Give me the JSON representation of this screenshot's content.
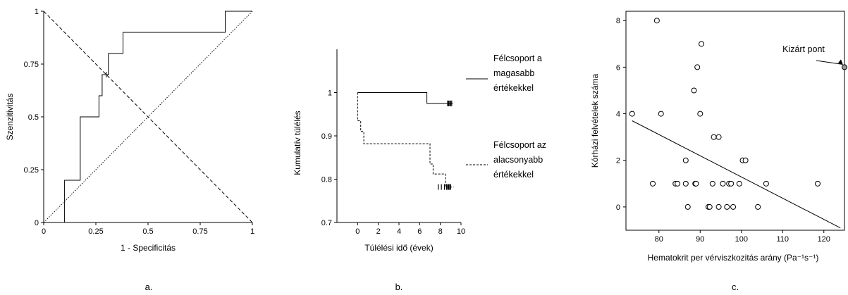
{
  "chart_data": [
    {
      "type": "line",
      "panel_label": "a.",
      "xlabel": "1 - Specificitás",
      "ylabel": "Szenzitivitás",
      "xlim": [
        0,
        1
      ],
      "ylim": [
        0,
        1
      ],
      "x_ticks": [
        "0",
        "0.25",
        "0.5",
        "0.75",
        "1"
      ],
      "y_ticks": [
        "0",
        "0.25",
        "0.5",
        "0.75",
        "1"
      ],
      "grid": false,
      "series": [
        {
          "style": "solid",
          "step": true,
          "x": [
            0.1,
            0.1,
            0.175,
            0.175,
            0.265,
            0.265,
            0.28,
            0.28,
            0.31,
            0.31,
            0.38,
            0.38,
            0.87,
            0.87,
            1.0
          ],
          "y": [
            0.0,
            0.2,
            0.2,
            0.5,
            0.5,
            0.6,
            0.6,
            0.7,
            0.7,
            0.8,
            0.8,
            0.9,
            0.9,
            1.0,
            1.0
          ]
        },
        {
          "style": "dashed",
          "x": [
            0,
            1
          ],
          "y": [
            1,
            0
          ]
        },
        {
          "style": "dotted",
          "x": [
            0,
            1
          ],
          "y": [
            0,
            1
          ]
        }
      ],
      "marker": {
        "x": 0.3,
        "y": 0.7,
        "symbol": "+"
      }
    },
    {
      "type": "line",
      "panel_label": "b.",
      "xlabel": "Túlélési idő (évek)",
      "ylabel": "Kumulatív túlélés",
      "xlim": [
        -2,
        10
      ],
      "ylim": [
        0.7,
        1.1
      ],
      "x_ticks": [
        "0",
        "2",
        "4",
        "6",
        "8",
        "10"
      ],
      "y_ticks": [
        "0.7",
        "0.8",
        "0.9",
        "1"
      ],
      "grid": false,
      "series": [
        {
          "name": "Félcsoport a magasabb értékekkel",
          "legend_lines": [
            "Félcsoport a",
            "magasabb",
            "értékekkel"
          ],
          "style": "solid",
          "step": true,
          "x": [
            0,
            6.7,
            6.7,
            9.2
          ],
          "y": [
            1.0,
            1.0,
            0.975,
            0.975
          ],
          "censored_x": [
            8.7,
            8.8,
            8.9,
            9.0,
            9.1
          ]
        },
        {
          "name": "Félcsoport az alacsonyabb értékekkel",
          "legend_lines": [
            "Félcsoport az",
            "alacsonyabb",
            "értékekkel"
          ],
          "style": "dashed",
          "step": true,
          "x": [
            0,
            0,
            0.3,
            0.3,
            0.6,
            0.6,
            7.0,
            7.0,
            7.3,
            7.3,
            8.5,
            8.5,
            9.3
          ],
          "y": [
            1.0,
            0.935,
            0.935,
            0.91,
            0.91,
            0.882,
            0.882,
            0.835,
            0.835,
            0.812,
            0.812,
            0.782,
            0.782
          ],
          "censored_x": [
            7.8,
            8.1,
            8.4,
            8.6,
            8.7,
            8.8,
            8.9,
            9.0
          ]
        }
      ]
    },
    {
      "type": "scatter",
      "panel_label": "c.",
      "xlabel": "Hematokrit per vérviszkozitás arány",
      "xlabel_unit": "(Pa⁻¹s⁻¹)",
      "ylabel": "Kórházi felvételek száma",
      "xlim": [
        72,
        125
      ],
      "ylim": [
        -1,
        8.4
      ],
      "x_ticks": [
        "80",
        "90",
        "100",
        "110",
        "120"
      ],
      "y_ticks": [
        "0",
        "2",
        "4",
        "6",
        "8"
      ],
      "grid": false,
      "points": [
        [
          73.5,
          4
        ],
        [
          78.5,
          1
        ],
        [
          79.5,
          8
        ],
        [
          80.5,
          4
        ],
        [
          84,
          1
        ],
        [
          84.5,
          1
        ],
        [
          86.5,
          2
        ],
        [
          86.5,
          1
        ],
        [
          87,
          0
        ],
        [
          88.5,
          5
        ],
        [
          88.8,
          1
        ],
        [
          89,
          1
        ],
        [
          89.3,
          6
        ],
        [
          90,
          4
        ],
        [
          90.3,
          7
        ],
        [
          92,
          0
        ],
        [
          92.3,
          0
        ],
        [
          93,
          1
        ],
        [
          93.3,
          3
        ],
        [
          94.5,
          3
        ],
        [
          94.5,
          0
        ],
        [
          95.5,
          1
        ],
        [
          96.5,
          0
        ],
        [
          97,
          1
        ],
        [
          97.5,
          1
        ],
        [
          98,
          0
        ],
        [
          99.5,
          1
        ],
        [
          100.3,
          2
        ],
        [
          101,
          2
        ],
        [
          104,
          0
        ],
        [
          106,
          1
        ],
        [
          118.5,
          1
        ]
      ],
      "excluded_point": {
        "x": 125,
        "y": 6,
        "label": "Kizárt pont"
      },
      "regression": {
        "x": [
          73.5,
          124
        ],
        "y": [
          3.7,
          -0.9
        ]
      }
    }
  ]
}
